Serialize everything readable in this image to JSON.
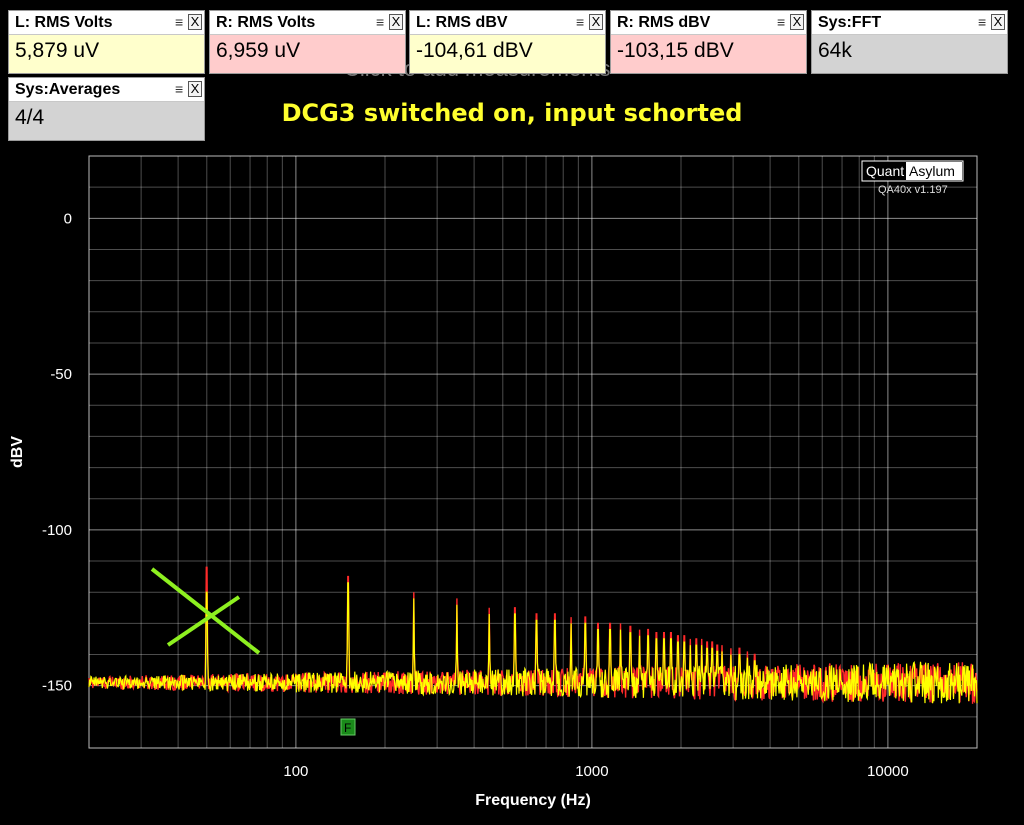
{
  "measurements": [
    {
      "name": "L: RMS Volts",
      "value": "5,879 uV",
      "color": "#ffffcc"
    },
    {
      "name": "R: RMS Volts",
      "value": "6,959 uV",
      "color": "#ffcccc"
    },
    {
      "name": "L: RMS dBV",
      "value": "-104,61 dBV",
      "color": "#ffffcc"
    },
    {
      "name": "R: RMS dBV",
      "value": "-103,15 dBV",
      "color": "#ffcccc"
    },
    {
      "name": "Sys:FFT",
      "value": "64k",
      "color": "#d3d3d3"
    },
    {
      "name": "Sys:Averages",
      "value": "4/4",
      "color": "#d3d3d3"
    }
  ],
  "tile_controls": {
    "menu_glyph": "≡",
    "close_label": "X"
  },
  "add_measurement_hint": "Click to add measurements",
  "annotation_title": "DCG3 switched on, input schorted",
  "logo": {
    "quant": "Quant",
    "asylum": "Asylum",
    "version": "QA40x v1.197"
  },
  "marker_label": "F",
  "chart_data": {
    "type": "line",
    "xlabel": "Frequency (Hz)",
    "ylabel": "dBV",
    "x_scale": "log",
    "xlim": [
      20,
      20000
    ],
    "ylim": [
      -170,
      20
    ],
    "x_ticks": [
      100,
      1000,
      10000
    ],
    "y_ticks": [
      0,
      -50,
      -100,
      -150
    ],
    "grid": true,
    "noise_floor_dbv": -150,
    "series": [
      {
        "color": "#ff2a2a",
        "peaks": [
          [
            50,
            -112
          ],
          [
            150,
            -115
          ],
          [
            250,
            -120
          ],
          [
            350,
            -122
          ],
          [
            450,
            -125
          ],
          [
            550,
            -125
          ],
          [
            650,
            -127
          ],
          [
            750,
            -127
          ],
          [
            850,
            -128
          ],
          [
            950,
            -128
          ],
          [
            1050,
            -130
          ],
          [
            1150,
            -130
          ],
          [
            1250,
            -130
          ],
          [
            1350,
            -131
          ],
          [
            1450,
            -132
          ],
          [
            1550,
            -132
          ],
          [
            1650,
            -133
          ],
          [
            1750,
            -133
          ],
          [
            1850,
            -133
          ],
          [
            1950,
            -134
          ],
          [
            2050,
            -134
          ],
          [
            2150,
            -135
          ],
          [
            2250,
            -135
          ],
          [
            2350,
            -135
          ],
          [
            2450,
            -136
          ],
          [
            2550,
            -136
          ],
          [
            2650,
            -137
          ],
          [
            2750,
            -137
          ],
          [
            2950,
            -138
          ],
          [
            3150,
            -138
          ],
          [
            3350,
            -139
          ],
          [
            3550,
            -140
          ]
        ]
      },
      {
        "color": "#ffff00",
        "peaks": [
          [
            50,
            -120
          ],
          [
            150,
            -117
          ],
          [
            250,
            -122
          ],
          [
            350,
            -124
          ],
          [
            450,
            -127
          ],
          [
            550,
            -127
          ],
          [
            650,
            -129
          ],
          [
            750,
            -129
          ],
          [
            850,
            -130
          ],
          [
            950,
            -130
          ],
          [
            1050,
            -132
          ],
          [
            1150,
            -132
          ],
          [
            1250,
            -132
          ],
          [
            1350,
            -133
          ],
          [
            1450,
            -134
          ],
          [
            1550,
            -134
          ],
          [
            1650,
            -135
          ],
          [
            1750,
            -135
          ],
          [
            1850,
            -135
          ],
          [
            1950,
            -136
          ],
          [
            2050,
            -136
          ],
          [
            2150,
            -137
          ],
          [
            2250,
            -137
          ],
          [
            2350,
            -137
          ],
          [
            2450,
            -138
          ],
          [
            2550,
            -138
          ],
          [
            2650,
            -139
          ],
          [
            2750,
            -139
          ],
          [
            2950,
            -140
          ],
          [
            3150,
            -140
          ],
          [
            3350,
            -141
          ],
          [
            3550,
            -142
          ]
        ]
      }
    ]
  },
  "colors": {
    "grid": "#ffffff",
    "marker": "#228b22",
    "cross": "#8ef020",
    "title": "#ffff2e"
  }
}
